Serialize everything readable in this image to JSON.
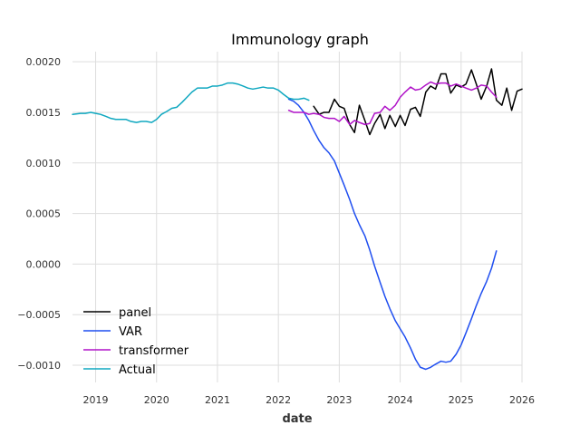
{
  "chart_data": {
    "type": "line",
    "title": "Immunology graph",
    "xlabel": "date",
    "ylabel": "",
    "xlim": [
      2018.62,
      2026.0
    ],
    "ylim": [
      -0.00117,
      0.0021
    ],
    "grid": true,
    "legend_position": "lower-left",
    "x_ticks": [
      2019,
      2020,
      2021,
      2022,
      2023,
      2024,
      2025,
      2026
    ],
    "x_tick_labels": [
      "2019",
      "2020",
      "2021",
      "2022",
      "2023",
      "2024",
      "2025",
      "2026"
    ],
    "y_ticks": [
      0.002,
      0.0015,
      0.001,
      0.0005,
      0.0,
      -0.0005,
      -0.001
    ],
    "y_tick_labels": [
      "0.0020",
      "0.0015",
      "0.0010",
      "0.0005",
      "0.0000",
      "−0.0005",
      "−0.0010"
    ],
    "series": [
      {
        "name": "panel",
        "color": "#000000",
        "x": [
          2022.58,
          2022.67,
          2022.75,
          2022.83,
          2022.92,
          2023.0,
          2023.08,
          2023.17,
          2023.25,
          2023.33,
          2023.42,
          2023.5,
          2023.58,
          2023.67,
          2023.75,
          2023.83,
          2023.92,
          2024.0,
          2024.08,
          2024.17,
          2024.25,
          2024.33,
          2024.42,
          2024.5,
          2024.58,
          2024.67,
          2024.75,
          2024.83,
          2024.92,
          2025.0,
          2025.08,
          2025.17,
          2025.25,
          2025.33,
          2025.42,
          2025.5,
          2025.58,
          2025.67,
          2025.75,
          2025.83,
          2025.92,
          2026.0
        ],
        "y": [
          0.00156,
          0.00148,
          0.0015,
          0.0015,
          0.00163,
          0.00156,
          0.00154,
          0.00138,
          0.0013,
          0.00157,
          0.00142,
          0.00128,
          0.00139,
          0.00148,
          0.00134,
          0.00147,
          0.00136,
          0.00147,
          0.00137,
          0.00153,
          0.00155,
          0.00146,
          0.0017,
          0.00176,
          0.00173,
          0.00188,
          0.00188,
          0.00169,
          0.00177,
          0.00175,
          0.00178,
          0.00192,
          0.00178,
          0.00163,
          0.00176,
          0.00193,
          0.00162,
          0.00157,
          0.00174,
          0.00152,
          0.00171,
          0.00173
        ]
      },
      {
        "name": "VAR",
        "color": "#1f4ef0",
        "x": [
          2022.17,
          2022.25,
          2022.33,
          2022.42,
          2022.5,
          2022.58,
          2022.67,
          2022.75,
          2022.83,
          2022.92,
          2023.0,
          2023.08,
          2023.17,
          2023.25,
          2023.33,
          2023.42,
          2023.5,
          2023.58,
          2023.67,
          2023.75,
          2023.83,
          2023.92,
          2024.0,
          2024.08,
          2024.17,
          2024.25,
          2024.33,
          2024.42,
          2024.5,
          2024.58,
          2024.67,
          2024.75,
          2024.83,
          2024.92,
          2025.0,
          2025.08,
          2025.17,
          2025.25,
          2025.33,
          2025.42,
          2025.5,
          2025.58
        ],
        "y": [
          0.00163,
          0.00161,
          0.00157,
          0.0015,
          0.00142,
          0.00132,
          0.00122,
          0.00115,
          0.0011,
          0.00102,
          0.0009,
          0.00078,
          0.00064,
          0.0005,
          0.00039,
          0.00028,
          0.00014,
          -2e-05,
          -0.00018,
          -0.00032,
          -0.00044,
          -0.00056,
          -0.00064,
          -0.00072,
          -0.00083,
          -0.00094,
          -0.00102,
          -0.00104,
          -0.00102,
          -0.00099,
          -0.00096,
          -0.00097,
          -0.00096,
          -0.00089,
          -0.0008,
          -0.00068,
          -0.00054,
          -0.00041,
          -0.00029,
          -0.00017,
          -4e-05,
          0.00013
        ]
      },
      {
        "name": "transformer",
        "color": "#b012c8",
        "x": [
          2022.17,
          2022.25,
          2022.33,
          2022.42,
          2022.5,
          2022.58,
          2022.67,
          2022.75,
          2022.83,
          2022.92,
          2023.0,
          2023.08,
          2023.17,
          2023.25,
          2023.33,
          2023.42,
          2023.5,
          2023.58,
          2023.67,
          2023.75,
          2023.83,
          2023.92,
          2024.0,
          2024.08,
          2024.17,
          2024.25,
          2024.33,
          2024.42,
          2024.5,
          2024.58,
          2024.67,
          2024.75,
          2024.83,
          2024.92,
          2025.0,
          2025.08,
          2025.17,
          2025.25,
          2025.33,
          2025.42,
          2025.5,
          2025.58
        ],
        "y": [
          0.00152,
          0.0015,
          0.0015,
          0.0015,
          0.00148,
          0.00149,
          0.00148,
          0.00145,
          0.00144,
          0.00144,
          0.00141,
          0.00146,
          0.00138,
          0.00142,
          0.0014,
          0.00138,
          0.00139,
          0.00149,
          0.0015,
          0.00156,
          0.00152,
          0.00157,
          0.00165,
          0.0017,
          0.00175,
          0.00172,
          0.00173,
          0.00177,
          0.0018,
          0.00178,
          0.00179,
          0.00179,
          0.00176,
          0.00178,
          0.00176,
          0.00174,
          0.00172,
          0.00174,
          0.00177,
          0.00176,
          0.0017,
          0.00165
        ]
      },
      {
        "name": "Actual",
        "color": "#10a8c0",
        "x": [
          2018.62,
          2018.75,
          2018.83,
          2018.92,
          2019.0,
          2019.08,
          2019.17,
          2019.25,
          2019.33,
          2019.42,
          2019.5,
          2019.58,
          2019.67,
          2019.75,
          2019.83,
          2019.92,
          2020.0,
          2020.08,
          2020.17,
          2020.25,
          2020.33,
          2020.42,
          2020.5,
          2020.58,
          2020.67,
          2020.75,
          2020.83,
          2020.92,
          2021.0,
          2021.08,
          2021.17,
          2021.25,
          2021.33,
          2021.42,
          2021.5,
          2021.58,
          2021.67,
          2021.75,
          2021.83,
          2021.92,
          2022.0,
          2022.08,
          2022.17,
          2022.25,
          2022.33,
          2022.42,
          2022.5
        ],
        "y": [
          0.00148,
          0.00149,
          0.00149,
          0.0015,
          0.00149,
          0.00148,
          0.00146,
          0.00144,
          0.00143,
          0.00143,
          0.00143,
          0.00141,
          0.0014,
          0.00141,
          0.00141,
          0.0014,
          0.00143,
          0.00148,
          0.00151,
          0.00154,
          0.00155,
          0.0016,
          0.00165,
          0.0017,
          0.00174,
          0.00174,
          0.00174,
          0.00176,
          0.00176,
          0.00177,
          0.00179,
          0.00179,
          0.00178,
          0.00176,
          0.00174,
          0.00173,
          0.00174,
          0.00175,
          0.00174,
          0.00174,
          0.00172,
          0.00168,
          0.00164,
          0.00163,
          0.00163,
          0.00164,
          0.00162
        ]
      }
    ]
  }
}
